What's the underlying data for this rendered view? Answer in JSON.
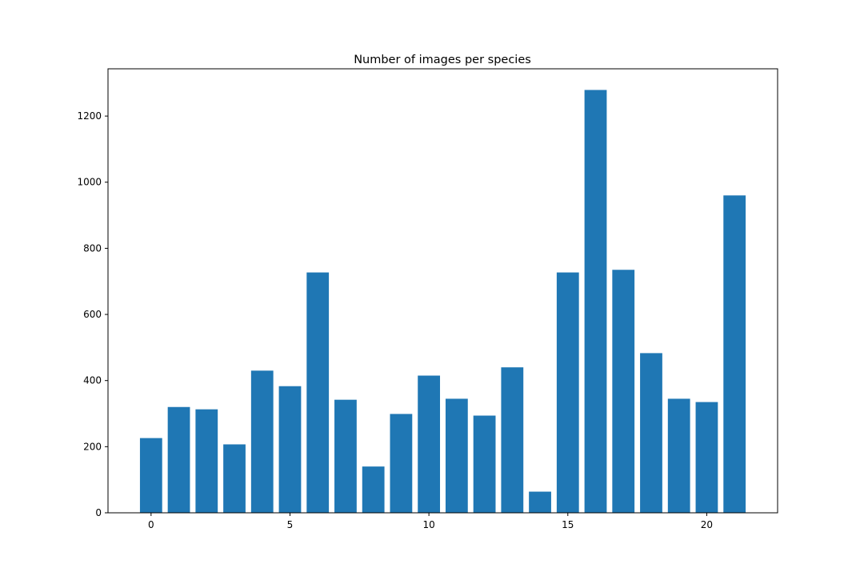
{
  "chart_data": {
    "type": "bar",
    "title": "Number of images per species",
    "xlabel": "",
    "ylabel": "",
    "x": [
      0,
      1,
      2,
      3,
      4,
      5,
      6,
      7,
      8,
      9,
      10,
      11,
      12,
      13,
      14,
      15,
      16,
      17,
      18,
      19,
      20,
      21
    ],
    "values": [
      226,
      320,
      313,
      207,
      430,
      383,
      727,
      342,
      140,
      299,
      415,
      345,
      294,
      440,
      64,
      727,
      1279,
      735,
      483,
      345,
      335,
      960
    ],
    "xlim": [
      -1.55,
      22.55
    ],
    "ylim": [
      0,
      1343
    ],
    "xticks": [
      0,
      5,
      10,
      15,
      20
    ],
    "yticks": [
      0,
      200,
      400,
      600,
      800,
      1000,
      1200
    ],
    "bar_width": 0.8,
    "grid": false,
    "legend": "none",
    "colors": {
      "bar": "#1f77b4",
      "axes": "#000000",
      "background": "#ffffff"
    }
  }
}
